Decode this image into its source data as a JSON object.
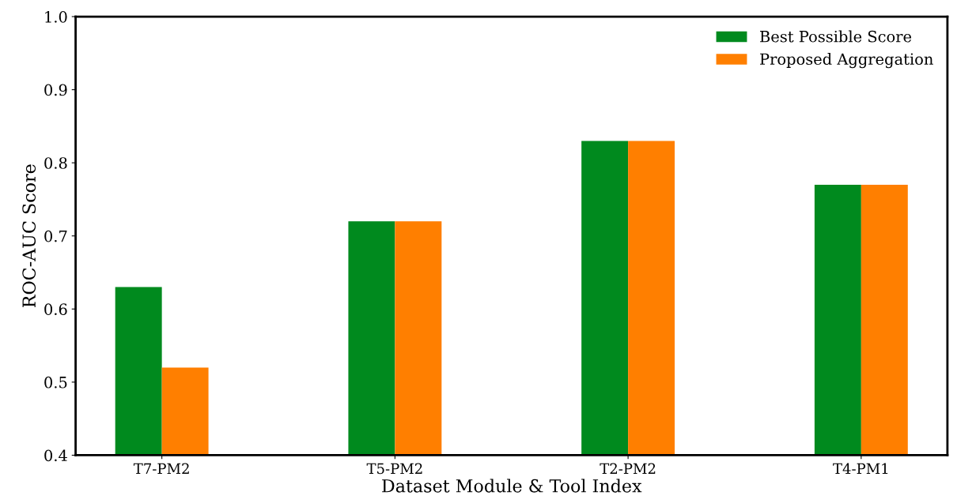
{
  "chart_data": {
    "type": "bar",
    "xlabel": "Dataset Module & Tool Index",
    "ylabel": "ROC-AUC Score",
    "categories": [
      "T7-PM2",
      "T5-PM2",
      "T2-PM2",
      "T4-PM1"
    ],
    "series": [
      {
        "name": "Best Possible Score",
        "color": "#008a1e",
        "values": [
          0.63,
          0.72,
          0.83,
          0.77
        ]
      },
      {
        "name": "Proposed Aggregation",
        "color": "#ff7f00",
        "values": [
          0.52,
          0.72,
          0.83,
          0.77
        ]
      }
    ],
    "ylim": [
      0.4,
      1.0
    ],
    "yticks": [
      0.4,
      0.5,
      0.6,
      0.7,
      0.8,
      0.9,
      {
        "value": 1.0,
        "label": "1.0"
      }
    ],
    "legend": "top right",
    "grid": false
  }
}
